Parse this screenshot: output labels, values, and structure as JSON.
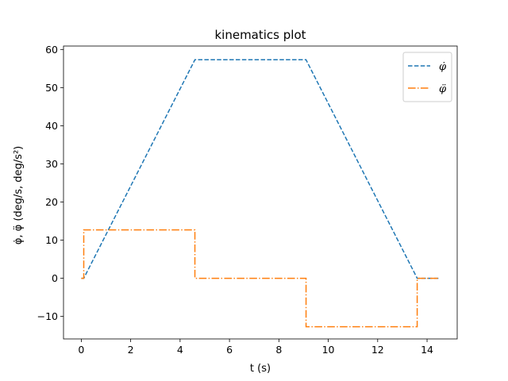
{
  "chart_data": {
    "type": "line",
    "title": "kinematics plot",
    "xlabel": "t (s)",
    "ylabel": "φ̇, φ̈ (deg/s, deg/s²)",
    "xlim": [
      -0.72,
      15.22
    ],
    "ylim": [
      -15.9,
      60.9
    ],
    "xticks": [
      0,
      2,
      4,
      6,
      8,
      10,
      12,
      14
    ],
    "yticks": [
      -10,
      0,
      10,
      20,
      30,
      40,
      50,
      60
    ],
    "ytick_labels": [
      "−10",
      "0",
      "10",
      "20",
      "30",
      "40",
      "50",
      "60"
    ],
    "grid": false,
    "legend_position": "top-right",
    "series": [
      {
        "name": "φ̇",
        "color": "#1f77b4",
        "style": "dashed",
        "x": [
          0.0,
          0.1,
          4.6,
          9.1,
          13.6,
          14.5
        ],
        "y": [
          0,
          0,
          57.3,
          57.3,
          0,
          0
        ]
      },
      {
        "name": "φ̈",
        "color": "#ff7f0e",
        "style": "dashdot",
        "x": [
          0.0,
          0.1,
          0.1,
          4.6,
          4.6,
          9.1,
          9.1,
          13.6,
          13.6,
          14.5
        ],
        "y": [
          0,
          0,
          12.7,
          12.7,
          0,
          0,
          -12.7,
          -12.7,
          0,
          0
        ]
      }
    ]
  }
}
